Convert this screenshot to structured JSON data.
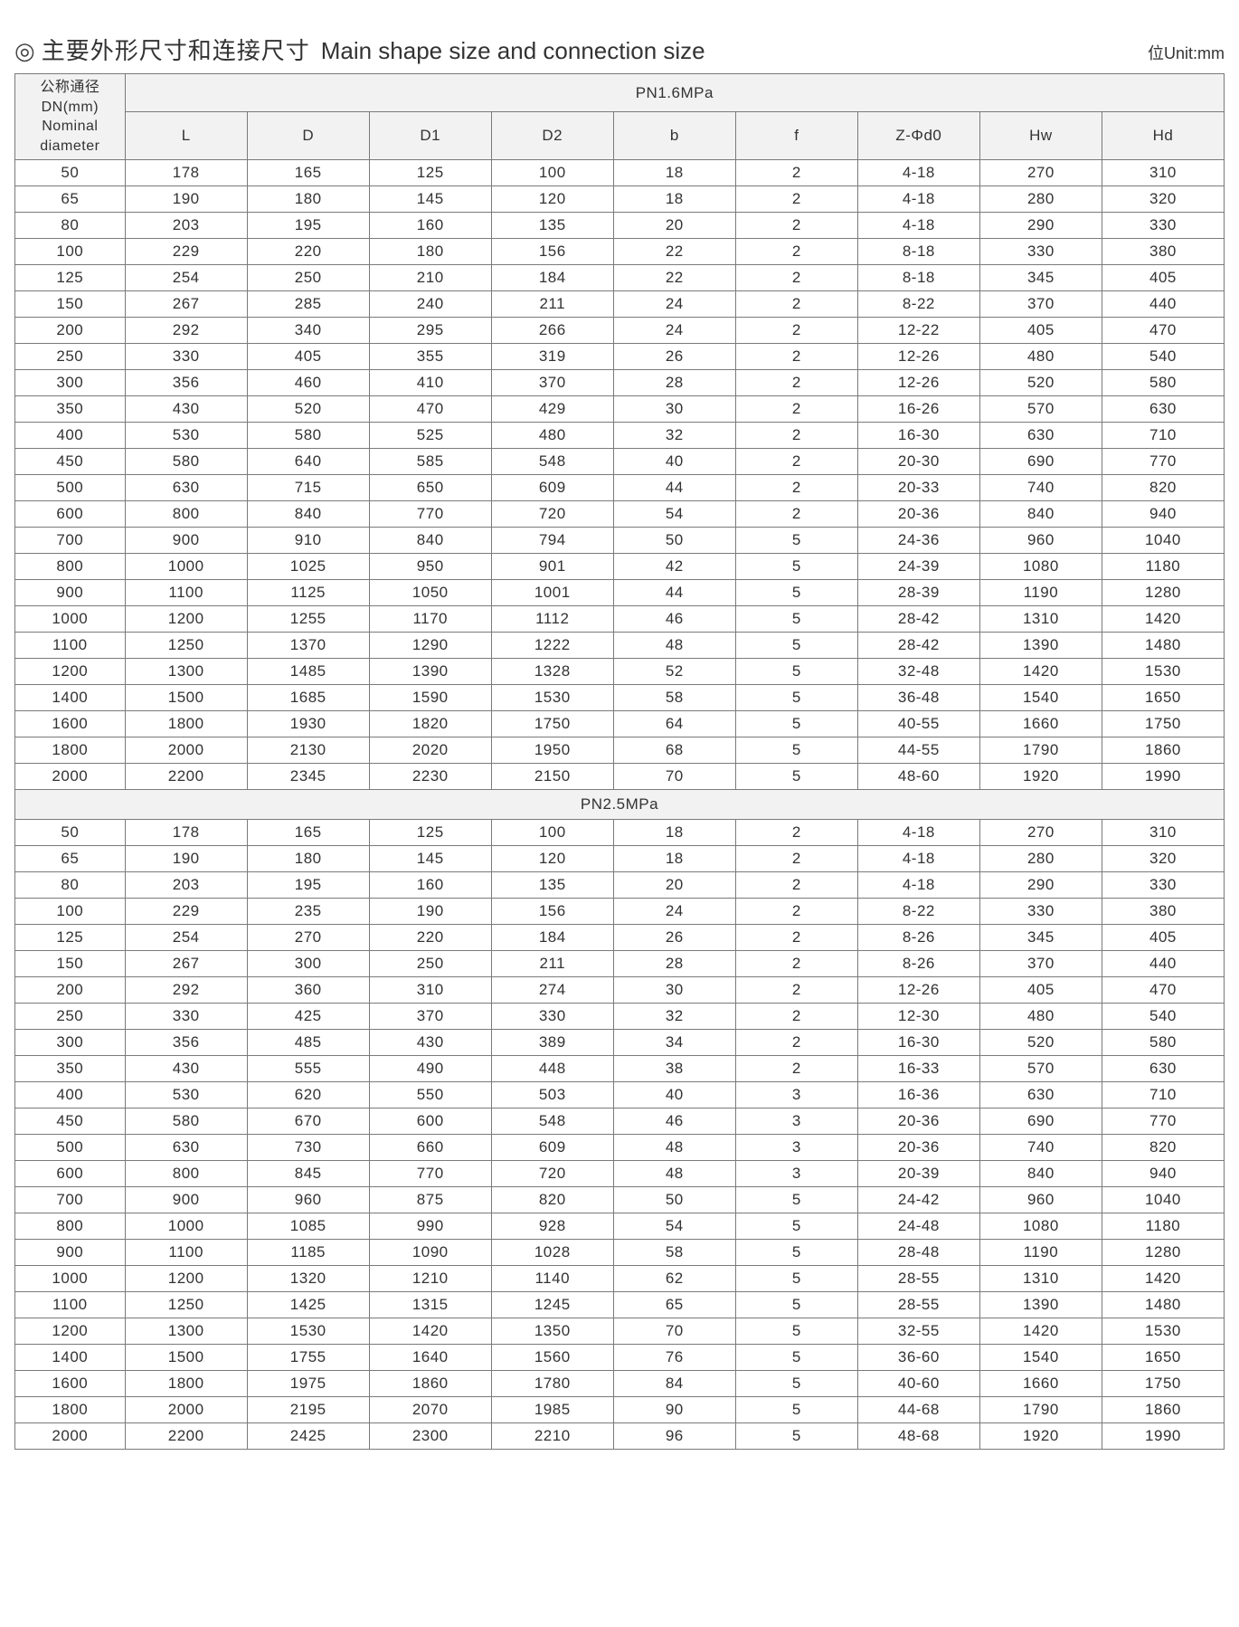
{
  "title": {
    "marker": "◎",
    "cn": "主要外形尺寸和连接尺寸",
    "en": "Main shape size and connection size"
  },
  "unit_label": "位Unit:mm",
  "row_header": {
    "line1": "公称通径",
    "line2": "DN(mm)",
    "line3": "Nominal",
    "line4": "diameter"
  },
  "columns": [
    "L",
    "D",
    "D1",
    "D2",
    "b",
    "f",
    "Z-Φd0",
    "Hw",
    "Hd"
  ],
  "sections": [
    {
      "label": "PN1.6MPa",
      "rows": [
        [
          "50",
          "178",
          "165",
          "125",
          "100",
          "18",
          "2",
          "4-18",
          "270",
          "310"
        ],
        [
          "65",
          "190",
          "180",
          "145",
          "120",
          "18",
          "2",
          "4-18",
          "280",
          "320"
        ],
        [
          "80",
          "203",
          "195",
          "160",
          "135",
          "20",
          "2",
          "4-18",
          "290",
          "330"
        ],
        [
          "100",
          "229",
          "220",
          "180",
          "156",
          "22",
          "2",
          "8-18",
          "330",
          "380"
        ],
        [
          "125",
          "254",
          "250",
          "210",
          "184",
          "22",
          "2",
          "8-18",
          "345",
          "405"
        ],
        [
          "150",
          "267",
          "285",
          "240",
          "211",
          "24",
          "2",
          "8-22",
          "370",
          "440"
        ],
        [
          "200",
          "292",
          "340",
          "295",
          "266",
          "24",
          "2",
          "12-22",
          "405",
          "470"
        ],
        [
          "250",
          "330",
          "405",
          "355",
          "319",
          "26",
          "2",
          "12-26",
          "480",
          "540"
        ],
        [
          "300",
          "356",
          "460",
          "410",
          "370",
          "28",
          "2",
          "12-26",
          "520",
          "580"
        ],
        [
          "350",
          "430",
          "520",
          "470",
          "429",
          "30",
          "2",
          "16-26",
          "570",
          "630"
        ],
        [
          "400",
          "530",
          "580",
          "525",
          "480",
          "32",
          "2",
          "16-30",
          "630",
          "710"
        ],
        [
          "450",
          "580",
          "640",
          "585",
          "548",
          "40",
          "2",
          "20-30",
          "690",
          "770"
        ],
        [
          "500",
          "630",
          "715",
          "650",
          "609",
          "44",
          "2",
          "20-33",
          "740",
          "820"
        ],
        [
          "600",
          "800",
          "840",
          "770",
          "720",
          "54",
          "2",
          "20-36",
          "840",
          "940"
        ],
        [
          "700",
          "900",
          "910",
          "840",
          "794",
          "50",
          "5",
          "24-36",
          "960",
          "1040"
        ],
        [
          "800",
          "1000",
          "1025",
          "950",
          "901",
          "42",
          "5",
          "24-39",
          "1080",
          "1180"
        ],
        [
          "900",
          "1100",
          "1125",
          "1050",
          "1001",
          "44",
          "5",
          "28-39",
          "1190",
          "1280"
        ],
        [
          "1000",
          "1200",
          "1255",
          "1170",
          "1112",
          "46",
          "5",
          "28-42",
          "1310",
          "1420"
        ],
        [
          "1100",
          "1250",
          "1370",
          "1290",
          "1222",
          "48",
          "5",
          "28-42",
          "1390",
          "1480"
        ],
        [
          "1200",
          "1300",
          "1485",
          "1390",
          "1328",
          "52",
          "5",
          "32-48",
          "1420",
          "1530"
        ],
        [
          "1400",
          "1500",
          "1685",
          "1590",
          "1530",
          "58",
          "5",
          "36-48",
          "1540",
          "1650"
        ],
        [
          "1600",
          "1800",
          "1930",
          "1820",
          "1750",
          "64",
          "5",
          "40-55",
          "1660",
          "1750"
        ],
        [
          "1800",
          "2000",
          "2130",
          "2020",
          "1950",
          "68",
          "5",
          "44-55",
          "1790",
          "1860"
        ],
        [
          "2000",
          "2200",
          "2345",
          "2230",
          "2150",
          "70",
          "5",
          "48-60",
          "1920",
          "1990"
        ]
      ]
    },
    {
      "label": "PN2.5MPa",
      "rows": [
        [
          "50",
          "178",
          "165",
          "125",
          "100",
          "18",
          "2",
          "4-18",
          "270",
          "310"
        ],
        [
          "65",
          "190",
          "180",
          "145",
          "120",
          "18",
          "2",
          "4-18",
          "280",
          "320"
        ],
        [
          "80",
          "203",
          "195",
          "160",
          "135",
          "20",
          "2",
          "4-18",
          "290",
          "330"
        ],
        [
          "100",
          "229",
          "235",
          "190",
          "156",
          "24",
          "2",
          "8-22",
          "330",
          "380"
        ],
        [
          "125",
          "254",
          "270",
          "220",
          "184",
          "26",
          "2",
          "8-26",
          "345",
          "405"
        ],
        [
          "150",
          "267",
          "300",
          "250",
          "211",
          "28",
          "2",
          "8-26",
          "370",
          "440"
        ],
        [
          "200",
          "292",
          "360",
          "310",
          "274",
          "30",
          "2",
          "12-26",
          "405",
          "470"
        ],
        [
          "250",
          "330",
          "425",
          "370",
          "330",
          "32",
          "2",
          "12-30",
          "480",
          "540"
        ],
        [
          "300",
          "356",
          "485",
          "430",
          "389",
          "34",
          "2",
          "16-30",
          "520",
          "580"
        ],
        [
          "350",
          "430",
          "555",
          "490",
          "448",
          "38",
          "2",
          "16-33",
          "570",
          "630"
        ],
        [
          "400",
          "530",
          "620",
          "550",
          "503",
          "40",
          "3",
          "16-36",
          "630",
          "710"
        ],
        [
          "450",
          "580",
          "670",
          "600",
          "548",
          "46",
          "3",
          "20-36",
          "690",
          "770"
        ],
        [
          "500",
          "630",
          "730",
          "660",
          "609",
          "48",
          "3",
          "20-36",
          "740",
          "820"
        ],
        [
          "600",
          "800",
          "845",
          "770",
          "720",
          "48",
          "3",
          "20-39",
          "840",
          "940"
        ],
        [
          "700",
          "900",
          "960",
          "875",
          "820",
          "50",
          "5",
          "24-42",
          "960",
          "1040"
        ],
        [
          "800",
          "1000",
          "1085",
          "990",
          "928",
          "54",
          "5",
          "24-48",
          "1080",
          "1180"
        ],
        [
          "900",
          "1100",
          "1185",
          "1090",
          "1028",
          "58",
          "5",
          "28-48",
          "1190",
          "1280"
        ],
        [
          "1000",
          "1200",
          "1320",
          "1210",
          "1140",
          "62",
          "5",
          "28-55",
          "1310",
          "1420"
        ],
        [
          "1100",
          "1250",
          "1425",
          "1315",
          "1245",
          "65",
          "5",
          "28-55",
          "1390",
          "1480"
        ],
        [
          "1200",
          "1300",
          "1530",
          "1420",
          "1350",
          "70",
          "5",
          "32-55",
          "1420",
          "1530"
        ],
        [
          "1400",
          "1500",
          "1755",
          "1640",
          "1560",
          "76",
          "5",
          "36-60",
          "1540",
          "1650"
        ],
        [
          "1600",
          "1800",
          "1975",
          "1860",
          "1780",
          "84",
          "5",
          "40-60",
          "1660",
          "1750"
        ],
        [
          "1800",
          "2000",
          "2195",
          "2070",
          "1985",
          "90",
          "5",
          "44-68",
          "1790",
          "1860"
        ],
        [
          "2000",
          "2200",
          "2425",
          "2300",
          "2210",
          "96",
          "5",
          "48-68",
          "1920",
          "1990"
        ]
      ]
    }
  ],
  "style": {
    "border_color": "#7a7a7a",
    "header_bg": "#f2f2f2",
    "text_color": "#333333",
    "font_size_cell": 17,
    "font_size_title": 26,
    "col0_width_pct": 9.1,
    "coln_width_pct": 10.1
  }
}
